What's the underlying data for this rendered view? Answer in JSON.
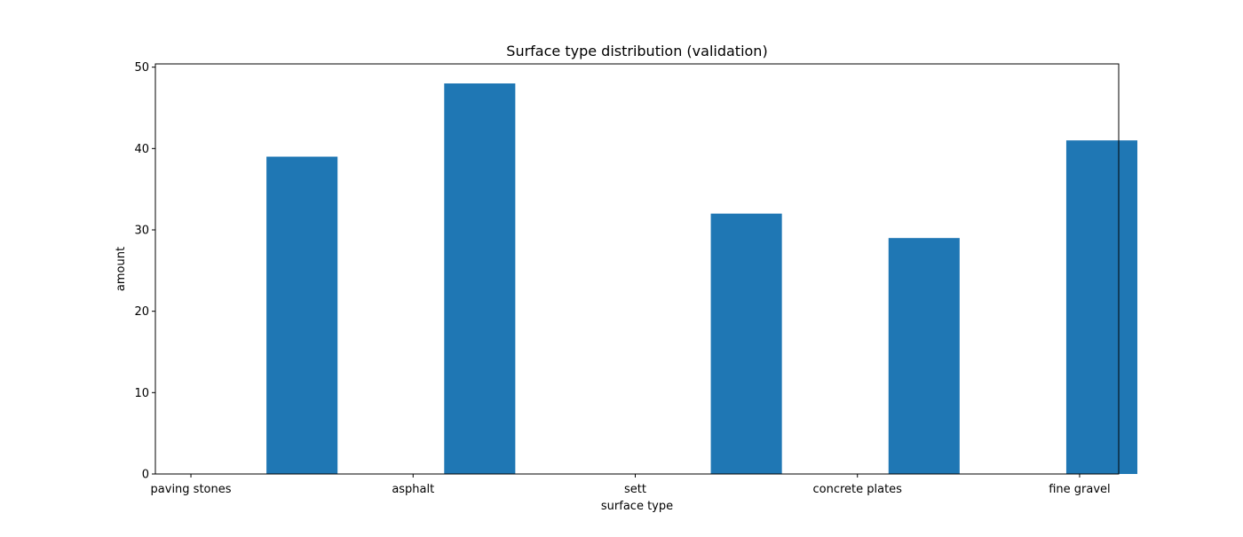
{
  "chart_data": {
    "type": "bar",
    "title": "Surface type distribution (validation)",
    "xlabel": "surface type",
    "ylabel": "amount",
    "xticks": [
      "paving stones",
      "asphalt",
      "sett",
      "concrete plates",
      "fine gravel"
    ],
    "bars": [
      {
        "x": 1.25,
        "value": 39
      },
      {
        "x": 3.25,
        "value": 48
      },
      {
        "x": 6.25,
        "value": 32
      },
      {
        "x": 8.25,
        "value": 29
      },
      {
        "x": 10.25,
        "value": 41
      }
    ],
    "xlim": [
      -0.4,
      10.44
    ],
    "ylim": [
      0,
      50.4
    ],
    "yticks": [
      0,
      10,
      20,
      30,
      40,
      50
    ],
    "bar_color": "#1f77b4",
    "grid": false,
    "legend": "none"
  }
}
